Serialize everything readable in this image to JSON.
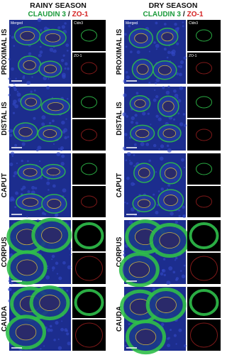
{
  "columns": [
    {
      "title": "RAINY SEASON",
      "stain": {
        "claudin": "CLAUDIN 3",
        "separator": "/",
        "zo1": "ZO-1"
      },
      "panel_labels": {
        "merged": "Merged",
        "cldn3": "Cldn3",
        "zo1": "ZO-1"
      }
    },
    {
      "title": "DRY SEASON",
      "stain": {
        "claudin": "CLAUDIN 3",
        "separator": "/",
        "zo1": "ZO-1"
      },
      "panel_labels": {
        "merged": "Merged",
        "cldn3": "Cldn3",
        "zo1": "ZO-1"
      }
    }
  ],
  "rows": [
    "PROXIMAL IS",
    "DISTAL IS",
    "CAPUT",
    "CORPUS",
    "CAUDA"
  ]
}
